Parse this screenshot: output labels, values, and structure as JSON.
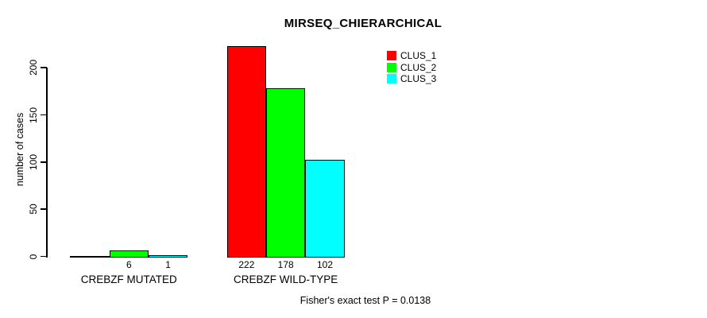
{
  "chart_data": {
    "type": "bar",
    "title": "MIRSEQ_CHIERARCHICAL",
    "ylabel": "number of cases",
    "xlabel": "",
    "ylim": [
      0,
      222
    ],
    "yticks": [
      0,
      50,
      100,
      150,
      200
    ],
    "grid": false,
    "legend_position": "top-right-inside",
    "categories": [
      "CREBZF MUTATED",
      "CREBZF WILD-TYPE"
    ],
    "series": [
      {
        "name": "CLUS_1",
        "color": "#ff0000",
        "values": [
          0,
          222
        ]
      },
      {
        "name": "CLUS_2",
        "color": "#00ff00",
        "values": [
          6,
          178
        ]
      },
      {
        "name": "CLUS_3",
        "color": "#00ffff",
        "values": [
          1,
          102
        ]
      }
    ],
    "bar_value_labels": [
      [
        "",
        "6",
        "1"
      ],
      [
        "222",
        "178",
        "102"
      ]
    ],
    "annotation": "Fisher's exact test P = 0.0138",
    "background_color": "#ffffff",
    "axis_color": "#000000"
  }
}
